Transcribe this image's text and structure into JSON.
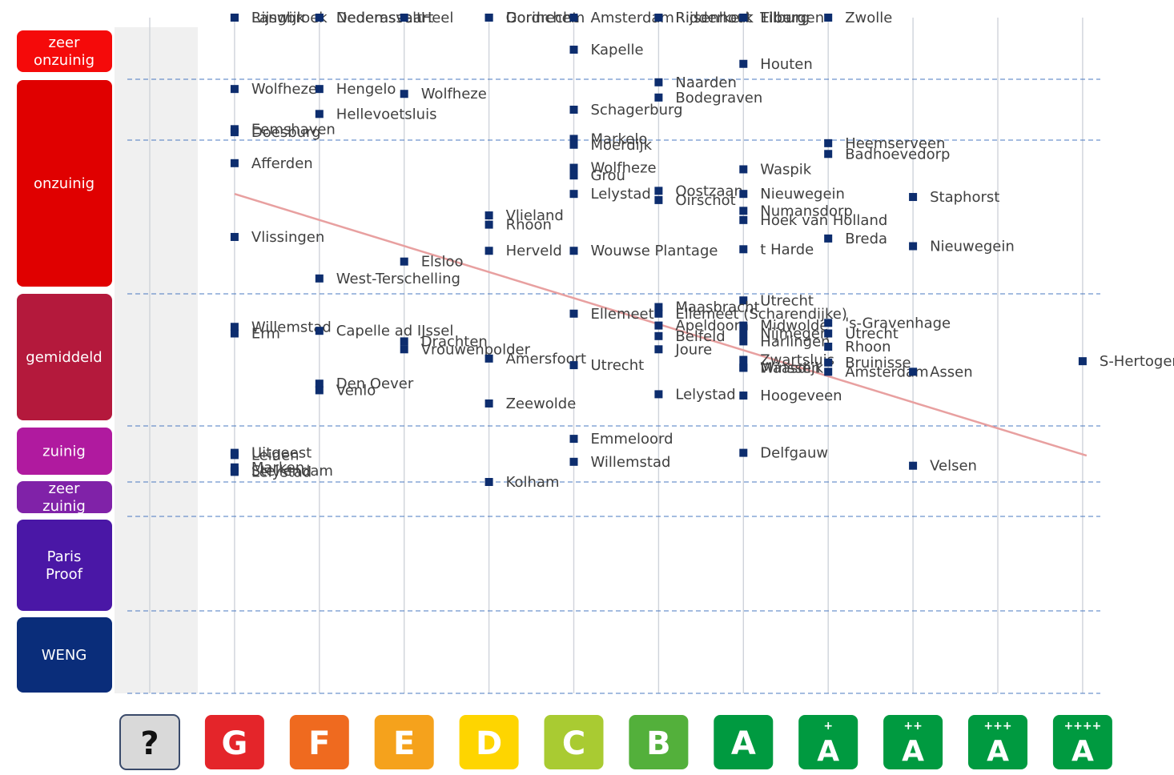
{
  "chart_data": {
    "type": "scatter",
    "title": "",
    "xlabel": "",
    "ylabel": "",
    "x_categories": [
      "?",
      "G",
      "F",
      "E",
      "D",
      "C",
      "B",
      "A",
      "A+",
      "A++",
      "A+++",
      "A++++"
    ],
    "energy_labels": [
      {
        "letter": "?",
        "plus": "",
        "color": "#d9d9d9"
      },
      {
        "letter": "G",
        "plus": "",
        "color": "#e4252a"
      },
      {
        "letter": "F",
        "plus": "",
        "color": "#ef6a1f"
      },
      {
        "letter": "E",
        "plus": "",
        "color": "#f5a21c"
      },
      {
        "letter": "D",
        "plus": "",
        "color": "#fed500"
      },
      {
        "letter": "C",
        "plus": "",
        "color": "#a9cb32"
      },
      {
        "letter": "B",
        "plus": "",
        "color": "#53b03b"
      },
      {
        "letter": "A",
        "plus": "",
        "color": "#009a40"
      },
      {
        "letter": "A",
        "plus": "+",
        "color": "#009a40"
      },
      {
        "letter": "A",
        "plus": "++",
        "color": "#009a40"
      },
      {
        "letter": "A",
        "plus": "+++",
        "color": "#009a40"
      },
      {
        "letter": "A",
        "plus": "++++",
        "color": "#009a40"
      }
    ],
    "y_bands": [
      {
        "label": [
          "zeer",
          "onzuinig"
        ],
        "color": "#f50a0a"
      },
      {
        "label": [
          "onzuinig"
        ],
        "color": "#e00000"
      },
      {
        "label": [
          "gemiddeld"
        ],
        "color": "#b4193c"
      },
      {
        "label": [
          "zuinig"
        ],
        "color": "#b01a9f"
      },
      {
        "label": [
          "zeer",
          "zuinig"
        ],
        "color": "#8022a8"
      },
      {
        "label": [
          "Paris",
          "Proof"
        ],
        "color": "#4a17a6"
      },
      {
        "label": [
          "WENG"
        ],
        "color": "#0a2d7a"
      }
    ],
    "marker_color": "#0d2d6e",
    "trend_color": "#e8a0a0",
    "grid_color": "#cfd3da",
    "band_line_color": "#4a78c0",
    "trendline": {
      "start": [
        1,
        2.35
      ],
      "end": [
        11,
        4.53
      ]
    },
    "points": [
      {
        "x": 1,
        "y": 0.0,
        "label": "Rijswijk"
      },
      {
        "x": 1,
        "y": 0.0,
        "label": "Langbroek"
      },
      {
        "x": 2,
        "y": 0.0,
        "label": "Dedemsvaart"
      },
      {
        "x": 2,
        "y": 0.0,
        "label": "Nederasselt"
      },
      {
        "x": 3,
        "y": 0.0,
        "label": "Heel"
      },
      {
        "x": 4,
        "y": 0.0,
        "label": "Dordrecht"
      },
      {
        "x": 4,
        "y": 0.0,
        "label": "Gorinchem"
      },
      {
        "x": 5,
        "y": 0.0,
        "label": "Amsterdam"
      },
      {
        "x": 6,
        "y": 0.0,
        "label": "Rijsenhout"
      },
      {
        "x": 6,
        "y": 0.0,
        "label": "Ridderkerk"
      },
      {
        "x": 7,
        "y": 0.0,
        "label": "Tilburg"
      },
      {
        "x": 7,
        "y": 0.0,
        "label": "Eibergen"
      },
      {
        "x": 7,
        "y": 0.0,
        "label": "Elburg"
      },
      {
        "x": 8,
        "y": 0.0,
        "label": "Zwolle"
      },
      {
        "x": 5,
        "y": 0.52,
        "label": "Kapelle"
      },
      {
        "x": 7,
        "y": 0.75,
        "label": "Houten"
      },
      {
        "x": 6,
        "y": 1.05,
        "label": "Naarden"
      },
      {
        "x": 1,
        "y": 1.16,
        "label": "Wolfheze"
      },
      {
        "x": 2,
        "y": 1.16,
        "label": "Hengelo"
      },
      {
        "x": 3,
        "y": 1.24,
        "label": "Wolfheze"
      },
      {
        "x": 6,
        "y": 1.3,
        "label": "Bodegraven"
      },
      {
        "x": 5,
        "y": 1.5,
        "label": "Schagerburg"
      },
      {
        "x": 2,
        "y": 1.57,
        "label": "Hellevoetsluis"
      },
      {
        "x": 1,
        "y": 1.82,
        "label": "Eemshaven"
      },
      {
        "x": 1,
        "y": 1.87,
        "label": "Doesburg"
      },
      {
        "x": 5,
        "y": 1.98,
        "label": "Markelo"
      },
      {
        "x": 5,
        "y": 2.03,
        "label": "Moerdijk"
      },
      {
        "x": 8,
        "y": 2.02,
        "label": "Heemserveen"
      },
      {
        "x": 8,
        "y": 2.09,
        "label": "Badhoevedorp"
      },
      {
        "x": 1,
        "y": 2.15,
        "label": "Afferden"
      },
      {
        "x": 5,
        "y": 2.18,
        "label": "Wolfheze"
      },
      {
        "x": 5,
        "y": 2.23,
        "label": "Grou"
      },
      {
        "x": 7,
        "y": 2.19,
        "label": "Waspik"
      },
      {
        "x": 5,
        "y": 2.35,
        "label": "Lelystad"
      },
      {
        "x": 6,
        "y": 2.33,
        "label": "Oostzaan"
      },
      {
        "x": 6,
        "y": 2.39,
        "label": "Oirschot"
      },
      {
        "x": 7,
        "y": 2.35,
        "label": "Nieuwegein"
      },
      {
        "x": 9,
        "y": 2.37,
        "label": "Staphorst"
      },
      {
        "x": 7,
        "y": 2.46,
        "label": "Numansdorp"
      },
      {
        "x": 7,
        "y": 2.52,
        "label": "Hoek van Holland"
      },
      {
        "x": 4,
        "y": 2.49,
        "label": "Vlieland"
      },
      {
        "x": 4,
        "y": 2.55,
        "label": "Rhoon"
      },
      {
        "x": 1,
        "y": 2.63,
        "label": "Vlissingen"
      },
      {
        "x": 8,
        "y": 2.64,
        "label": "Breda"
      },
      {
        "x": 4,
        "y": 2.72,
        "label": "Herveld"
      },
      {
        "x": 5,
        "y": 2.72,
        "label": "Wouwse Plantage"
      },
      {
        "x": 7,
        "y": 2.71,
        "label": "t Harde"
      },
      {
        "x": 9,
        "y": 2.69,
        "label": "Nieuwegein"
      },
      {
        "x": 3,
        "y": 2.79,
        "label": "Elsloo"
      },
      {
        "x": 2,
        "y": 2.9,
        "label": "West-Terschelling"
      },
      {
        "x": 7,
        "y": 3.05,
        "label": "Utrecht"
      },
      {
        "x": 6,
        "y": 3.1,
        "label": "Maasbracht"
      },
      {
        "x": 6,
        "y": 3.15,
        "label": "Ellemeet (Scharendijke)"
      },
      {
        "x": 5,
        "y": 3.15,
        "label": "Ellemeet"
      },
      {
        "x": 1,
        "y": 3.25,
        "label": "Willemstad"
      },
      {
        "x": 1,
        "y": 3.3,
        "label": "Erm"
      },
      {
        "x": 2,
        "y": 3.28,
        "label": "Capelle ad IJssel"
      },
      {
        "x": 6,
        "y": 3.24,
        "label": "Apeldoorn"
      },
      {
        "x": 7,
        "y": 3.24,
        "label": "Midwolde"
      },
      {
        "x": 8,
        "y": 3.22,
        "label": "'s-Gravenhage"
      },
      {
        "x": 6,
        "y": 3.32,
        "label": "Belfeld"
      },
      {
        "x": 7,
        "y": 3.3,
        "label": "Nijmegen"
      },
      {
        "x": 7,
        "y": 3.36,
        "label": "Harlingen"
      },
      {
        "x": 8,
        "y": 3.3,
        "label": "Utrecht"
      },
      {
        "x": 3,
        "y": 3.36,
        "label": "Drachten"
      },
      {
        "x": 3,
        "y": 3.42,
        "label": "Vrouwenpolder"
      },
      {
        "x": 6,
        "y": 3.42,
        "label": "Joure"
      },
      {
        "x": 8,
        "y": 3.4,
        "label": "Rhoon"
      },
      {
        "x": 4,
        "y": 3.49,
        "label": "Amersfoort"
      },
      {
        "x": 5,
        "y": 3.54,
        "label": "Utrecht"
      },
      {
        "x": 7,
        "y": 3.5,
        "label": "Zwartsluis"
      },
      {
        "x": 7,
        "y": 3.56,
        "label": "Maasdijk"
      },
      {
        "x": 7,
        "y": 3.56,
        "label": "Winssen"
      },
      {
        "x": 8,
        "y": 3.52,
        "label": "Bruinisse"
      },
      {
        "x": 8,
        "y": 3.59,
        "label": "Amsterdam"
      },
      {
        "x": 9,
        "y": 3.59,
        "label": "Assen"
      },
      {
        "x": 11,
        "y": 3.51,
        "label": "S-Hertogenbosch"
      },
      {
        "x": 2,
        "y": 3.68,
        "label": "Den Oever"
      },
      {
        "x": 2,
        "y": 3.73,
        "label": "Venlo"
      },
      {
        "x": 6,
        "y": 3.76,
        "label": "Lelystad"
      },
      {
        "x": 7,
        "y": 3.77,
        "label": "Hoogeveen"
      },
      {
        "x": 4,
        "y": 3.83,
        "label": "Zeewolde"
      },
      {
        "x": 5,
        "y": 4.23,
        "label": "Emmeloord"
      },
      {
        "x": 7,
        "y": 4.48,
        "label": "Delfgauw"
      },
      {
        "x": 1,
        "y": 4.48,
        "label": "Uitgeest"
      },
      {
        "x": 1,
        "y": 4.52,
        "label": "Leiden"
      },
      {
        "x": 5,
        "y": 4.64,
        "label": "Willemstad"
      },
      {
        "x": 9,
        "y": 4.71,
        "label": "Velsen"
      },
      {
        "x": 1,
        "y": 4.74,
        "label": "Marken"
      },
      {
        "x": 1,
        "y": 4.8,
        "label": "Stellendam"
      },
      {
        "x": 1,
        "y": 4.82,
        "label": "Lelystad"
      },
      {
        "x": 4,
        "y": 5.0,
        "label": "Kolham"
      }
    ]
  }
}
